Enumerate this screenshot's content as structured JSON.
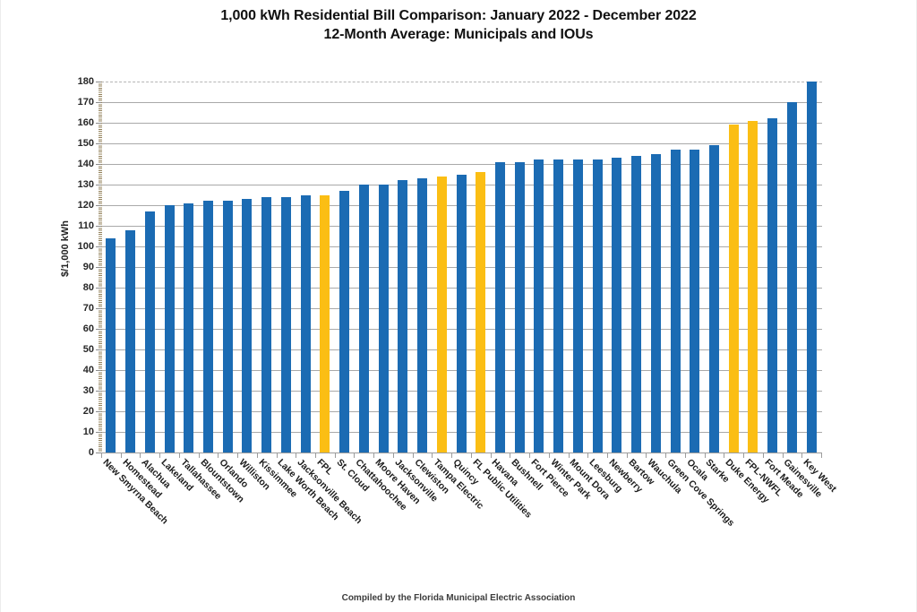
{
  "chart_data": {
    "type": "bar",
    "title": "1,000 kWh Residential Bill Comparison: January 2022 - December 2022\n12-Month Average: Municipals and IOUs",
    "title_line1": "1,000 kWh Residential Bill Comparison: January 2022 - December 2022",
    "title_line2": "12-Month Average: Municipals and IOUs",
    "ylabel": "$/1,000 kWh",
    "xlabel": "",
    "footer": "Compiled by the Florida Municipal Electric Association",
    "ylim": [
      0,
      180
    ],
    "ytick_step": 10,
    "grid": true,
    "legend_position": "none",
    "bar_colors": {
      "municipal": "#1B6BB3",
      "iou": "#FBBE14"
    },
    "gridline_color": "#A9A9A9",
    "categories": [
      "New Smyrna Beach",
      "Homestead",
      "Alachua",
      "Lakeland",
      "Tallahassee",
      "Blountstown",
      "Orlando",
      "Williston",
      "Kissimmee",
      "Lake Worth Beach",
      "Jacksonville Beach",
      "FPL",
      "St. Cloud",
      "Chattahoochee",
      "Moore Haven",
      "Jacksonville",
      "Clewiston",
      "Tampa Electric",
      "Quincy",
      "FL Public Utilities",
      "Havana",
      "Bushnell",
      "Fort Pierce",
      "Winter Park",
      "Mount Dora",
      "Leesburg",
      "Newberry",
      "Bartow",
      "Wauchula",
      "Green Cove Springs",
      "Ocala",
      "Starke",
      "Duke Energy",
      "FPL-NWFL",
      "Fort Meade",
      "Gainesville",
      "Key West"
    ],
    "values": [
      104,
      108,
      117,
      120,
      121,
      122,
      122,
      123,
      124,
      124,
      125,
      125,
      127,
      130,
      130,
      132,
      133,
      134,
      135,
      136,
      141,
      141,
      142,
      142,
      142,
      142,
      143,
      144,
      145,
      147,
      147,
      149,
      159,
      161,
      162,
      170,
      180
    ],
    "iou_indices": [
      11,
      17,
      19,
      32,
      33
    ],
    "ytick_labels": [
      "0",
      "10",
      "20",
      "30",
      "40",
      "50",
      "60",
      "70",
      "80",
      "90",
      "100",
      "110",
      "120",
      "130",
      "140",
      "150",
      "160",
      "170",
      "180"
    ]
  }
}
